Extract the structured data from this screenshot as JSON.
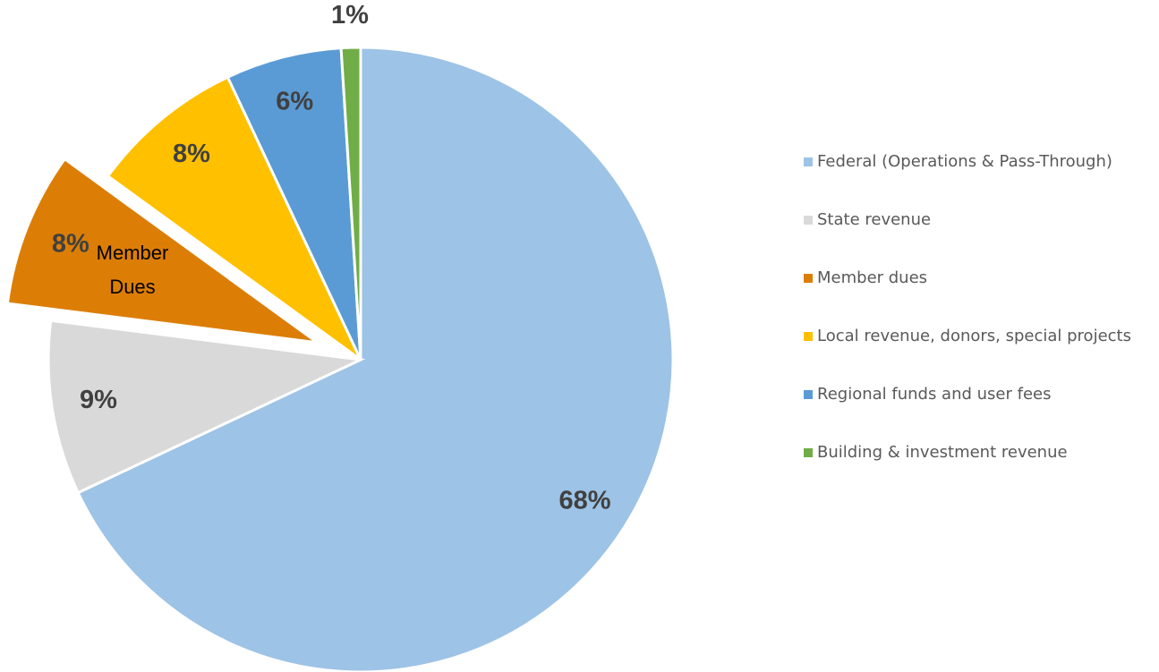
{
  "chart_data": {
    "type": "pie",
    "categories": [
      "Federal (Operations & Pass-Through)",
      "State revenue",
      "Member dues",
      "Local revenue, donors, special projects",
      "Regional funds and user fees",
      "Building & investment revenue"
    ],
    "values": [
      68,
      9,
      8,
      8,
      6,
      1
    ],
    "value_labels": [
      "68%",
      "9%",
      "8%",
      "8%",
      "6%",
      "1%"
    ],
    "colors": [
      "#9dc3e6",
      "#d9d9d9",
      "#dc7e06",
      "#ffc000",
      "#5b9bd5",
      "#70ad47"
    ],
    "exploded": [
      2
    ],
    "annotation": [
      "Member",
      "Dues"
    ],
    "legend": "right"
  }
}
